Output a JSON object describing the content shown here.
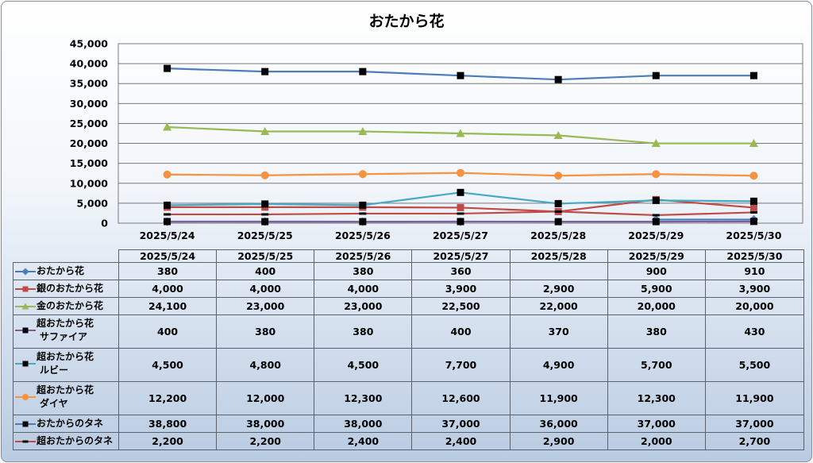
{
  "chart_data": {
    "type": "line",
    "title": "おたから花",
    "x": [
      "2025/5/24",
      "2025/5/25",
      "2025/5/26",
      "2025/5/27",
      "2025/5/28",
      "2025/5/29",
      "2025/5/30"
    ],
    "ylim": [
      0,
      45000
    ],
    "ytick_labels": [
      "0",
      "5,000",
      "10,000",
      "15,000",
      "20,000",
      "25,000",
      "30,000",
      "35,000",
      "40,000",
      "45,000"
    ],
    "grid": true,
    "legend": "data-table",
    "series": [
      {
        "name": "おたから花",
        "name_lines": [
          "おたから花"
        ],
        "values": [
          380,
          400,
          380,
          360,
          null,
          900,
          910
        ],
        "labels": [
          "380",
          "400",
          "380",
          "360",
          "",
          "900",
          "910"
        ],
        "color": "#4a7ebb",
        "marker": "diamond"
      },
      {
        "name": "銀のおたから花",
        "name_lines": [
          "銀のおたから花"
        ],
        "values": [
          4000,
          4000,
          4000,
          3900,
          2900,
          5900,
          3900
        ],
        "labels": [
          "4,000",
          "4,000",
          "4,000",
          "3,900",
          "2,900",
          "5,900",
          "3,900"
        ],
        "color": "#be4b48",
        "marker": "square"
      },
      {
        "name": "金のおたから花",
        "name_lines": [
          "金のおたから花"
        ],
        "values": [
          24100,
          23000,
          23000,
          22500,
          22000,
          20000,
          20000
        ],
        "labels": [
          "24,100",
          "23,000",
          "23,000",
          "22,500",
          "22,000",
          "20,000",
          "20,000"
        ],
        "color": "#98b954",
        "marker": "triangle"
      },
      {
        "name": "超おたから花 サファイア",
        "name_lines": [
          "超おたから花",
          "サファイア"
        ],
        "values": [
          400,
          380,
          380,
          400,
          370,
          380,
          430
        ],
        "labels": [
          "400",
          "380",
          "380",
          "400",
          "370",
          "380",
          "430"
        ],
        "color": "#7d60a0",
        "marker": "square-black"
      },
      {
        "name": "超おたから花 ルビー",
        "name_lines": [
          "超おたから花",
          "ルビー"
        ],
        "values": [
          4500,
          4800,
          4500,
          7700,
          4900,
          5700,
          5500
        ],
        "labels": [
          "4,500",
          "4,800",
          "4,500",
          "7,700",
          "4,900",
          "5,700",
          "5,500"
        ],
        "color": "#46aac5",
        "marker": "square-black"
      },
      {
        "name": "超おたから花 ダイヤ",
        "name_lines": [
          "超おたから花",
          "ダイヤ"
        ],
        "values": [
          12200,
          12000,
          12300,
          12600,
          11900,
          12300,
          11900
        ],
        "labels": [
          "12,200",
          "12,000",
          "12,300",
          "12,600",
          "11,900",
          "12,300",
          "11,900"
        ],
        "color": "#f69240",
        "marker": "circle"
      },
      {
        "name": "おたからのタネ",
        "name_lines": [
          "おたからのタネ"
        ],
        "values": [
          38800,
          38000,
          38000,
          37000,
          36000,
          37000,
          37000
        ],
        "labels": [
          "38,800",
          "38,000",
          "38,000",
          "37,000",
          "36,000",
          "37,000",
          "37,000"
        ],
        "color": "#4a7ebb",
        "marker": "square-black"
      },
      {
        "name": "超おたからのタネ",
        "name_lines": [
          "超おたからのタネ"
        ],
        "values": [
          2200,
          2200,
          2400,
          2400,
          2900,
          2000,
          2700
        ],
        "labels": [
          "2,200",
          "2,200",
          "2,400",
          "2,400",
          "2,900",
          "2,000",
          "2,700"
        ],
        "color": "#be4b48",
        "marker": "dash"
      }
    ]
  }
}
